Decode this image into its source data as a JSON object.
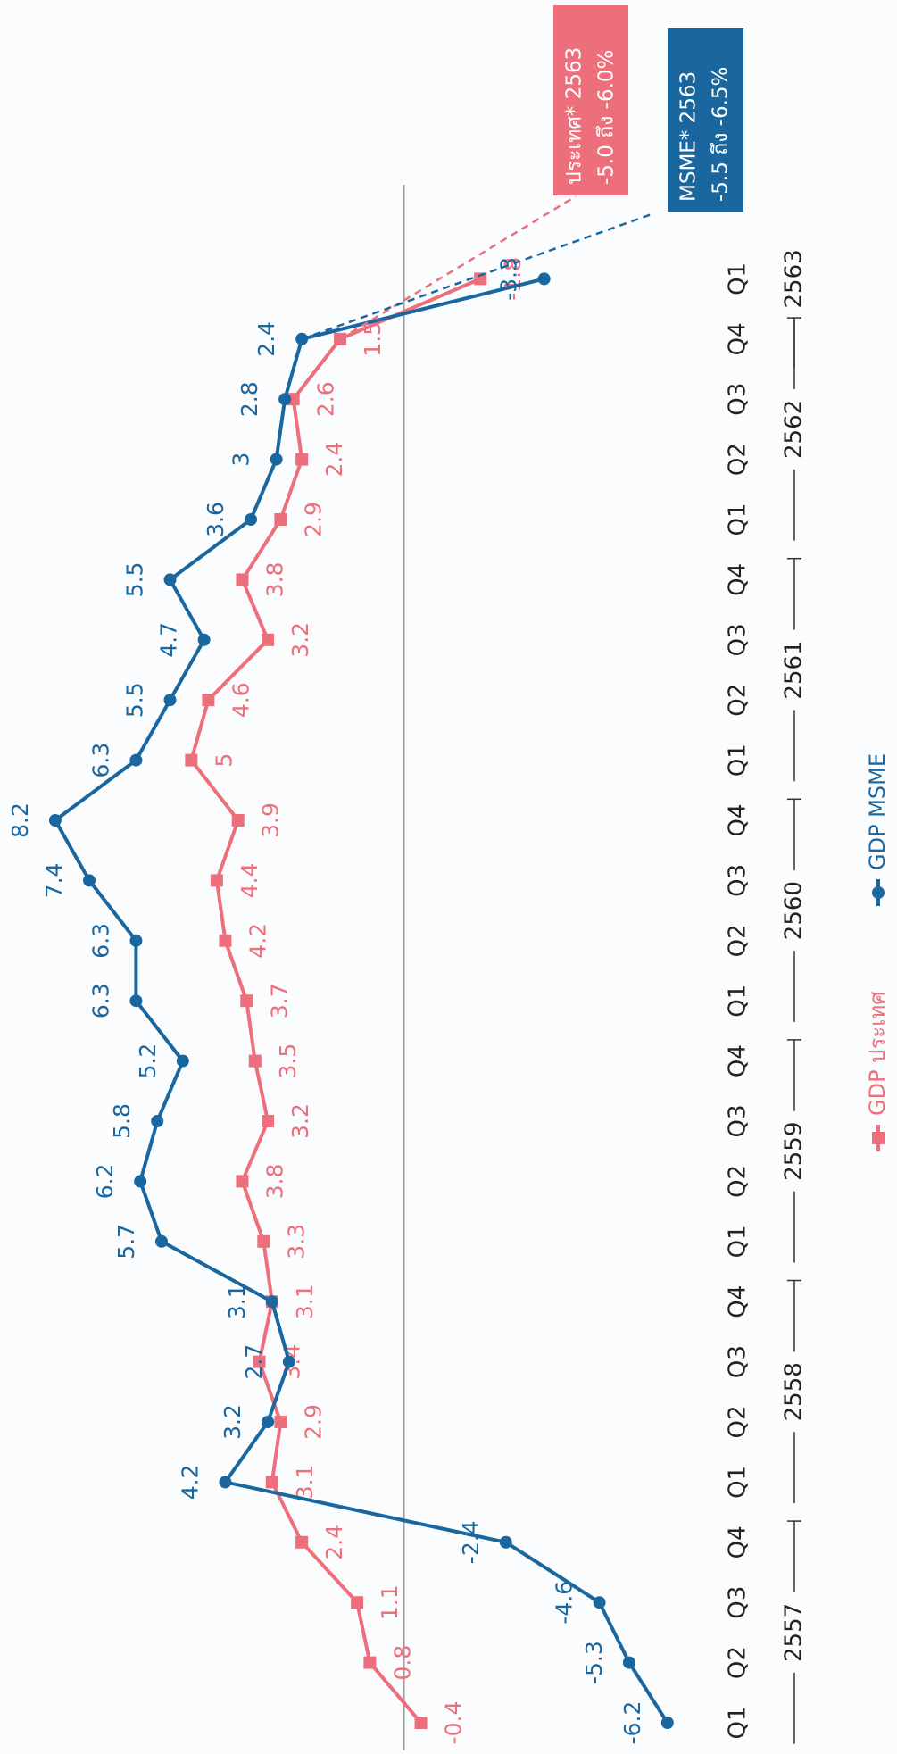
{
  "chart_data": {
    "type": "line",
    "categories": [
      "Q1",
      "Q2",
      "Q3",
      "Q4",
      "Q1",
      "Q2",
      "Q3",
      "Q4",
      "Q1",
      "Q2",
      "Q3",
      "Q4",
      "Q1",
      "Q2",
      "Q3",
      "Q4",
      "Q1",
      "Q2",
      "Q3",
      "Q4",
      "Q1",
      "Q2",
      "Q3",
      "Q4",
      "Q1"
    ],
    "years": [
      "2557",
      "2558",
      "2559",
      "2560",
      "2561",
      "2562",
      "2563"
    ],
    "series": [
      {
        "name": "GDP ประเทศ",
        "color": "#ee6f7c",
        "values": [
          -0.4,
          0.8,
          1.1,
          2.4,
          3.1,
          2.9,
          3.4,
          3.1,
          3.3,
          3.8,
          3.2,
          3.5,
          3.7,
          4.2,
          4.4,
          3.9,
          5.0,
          4.6,
          3.2,
          3.8,
          2.9,
          2.4,
          2.6,
          1.5,
          -1.8
        ]
      },
      {
        "name": "GDP MSME",
        "color": "#1a67a0",
        "values": [
          -6.2,
          -5.3,
          -4.6,
          -2.4,
          4.2,
          3.2,
          2.7,
          3.1,
          5.7,
          6.2,
          5.8,
          5.2,
          6.3,
          6.3,
          7.4,
          8.2,
          6.3,
          5.5,
          4.7,
          5.5,
          3.6,
          3.0,
          2.8,
          2.4,
          -3.3
        ]
      }
    ],
    "ylim": [
      -11.6,
      9.5
    ],
    "annotations": [
      {
        "title": "ประเทศ* 2563",
        "text": "-5.0 ถึง -6.0%",
        "color": "#ee6f7c"
      },
      {
        "title": "MSME* 2563",
        "text": "-5.5 ถึง -6.5%",
        "color": "#1a67a0"
      }
    ]
  }
}
